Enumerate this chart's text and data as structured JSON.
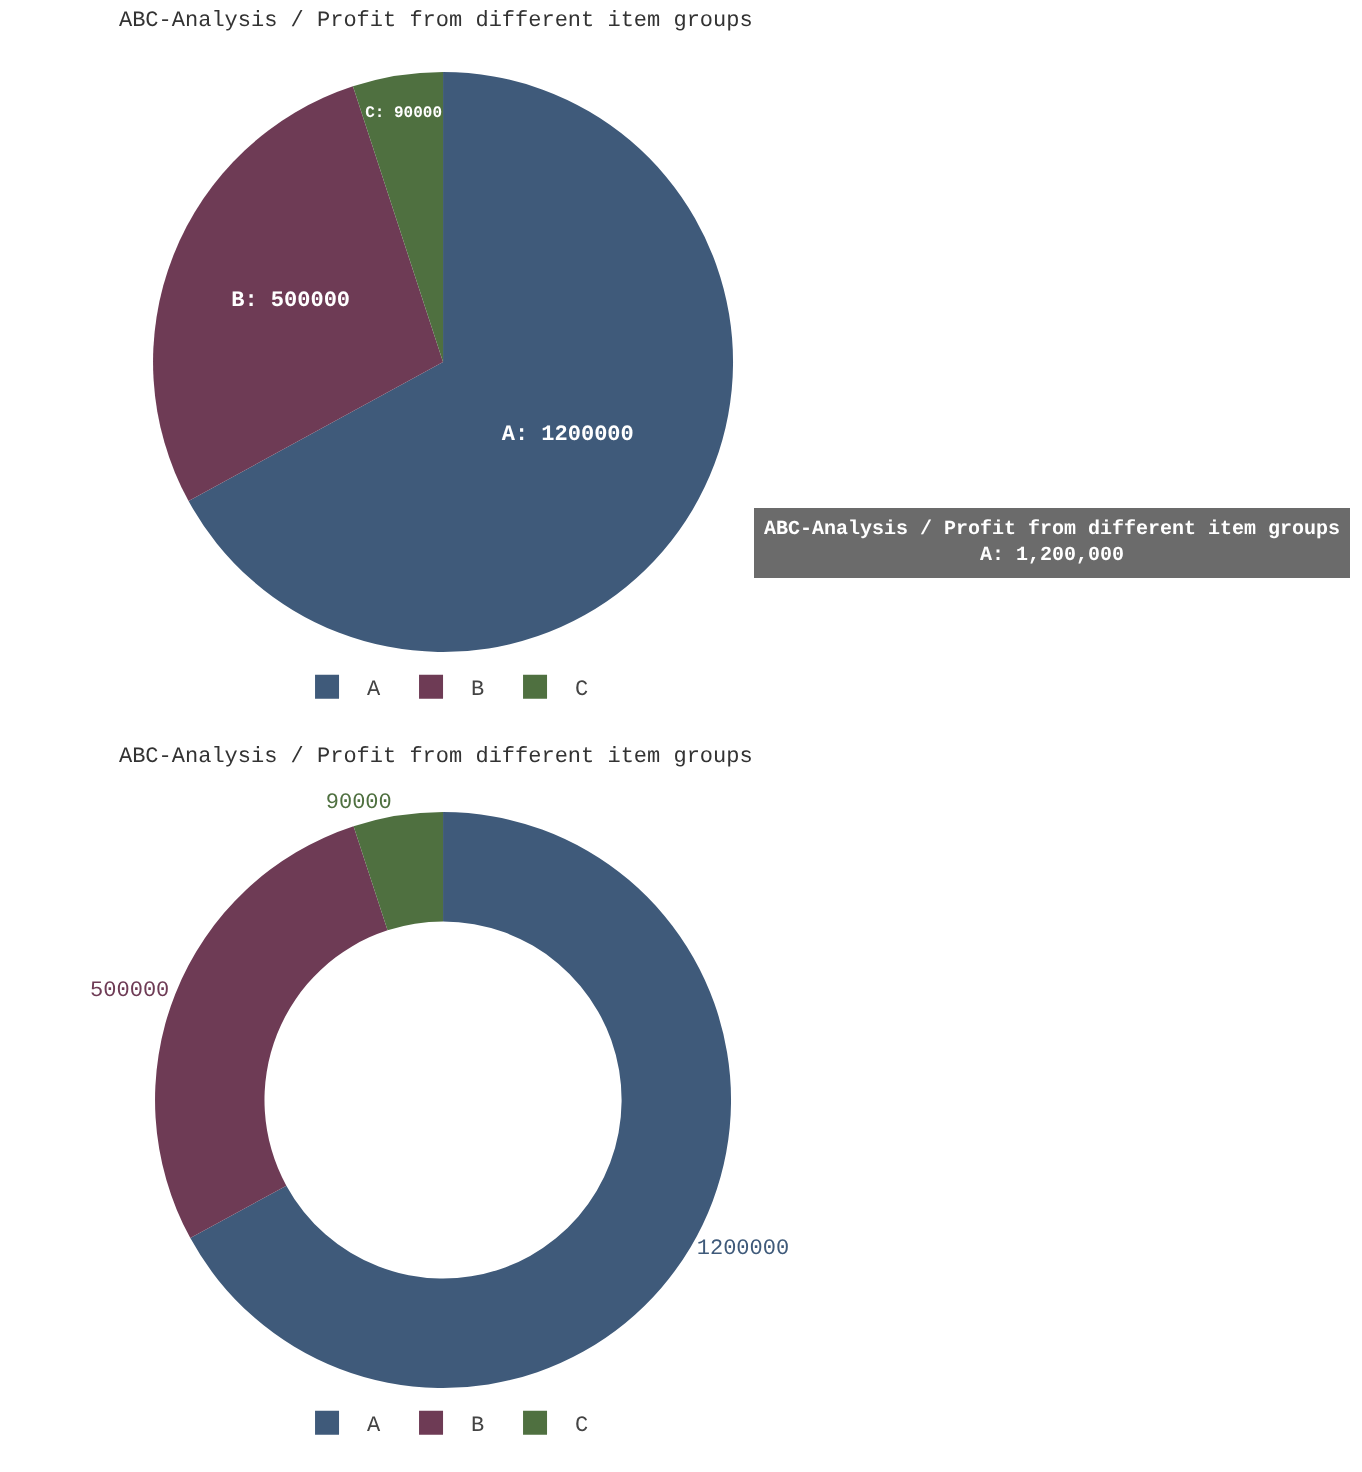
{
  "chart_data": [
    {
      "type": "pie",
      "title": "ABC-Analysis / Profit from different item groups",
      "categories": [
        "A",
        "B",
        "C"
      ],
      "values": [
        1200000,
        500000,
        90000
      ],
      "colors": [
        "#3f5a7a",
        "#6e3b55",
        "#4f7040"
      ],
      "value_labels": [
        "A: 1200000",
        "B: 500000",
        "C: 90000"
      ],
      "legend": "bottom",
      "annotations": [
        "ABC-Analysis / Profit from different item groups\nA: 1,200,000"
      ]
    },
    {
      "type": "donut",
      "title": "ABC-Analysis / Profit from different item groups",
      "categories": [
        "A",
        "B",
        "C"
      ],
      "values": [
        1200000,
        500000,
        90000
      ],
      "colors": [
        "#3f5a7a",
        "#6e3b55",
        "#4f7040"
      ],
      "data_labels": true,
      "legend": "bottom"
    }
  ]
}
